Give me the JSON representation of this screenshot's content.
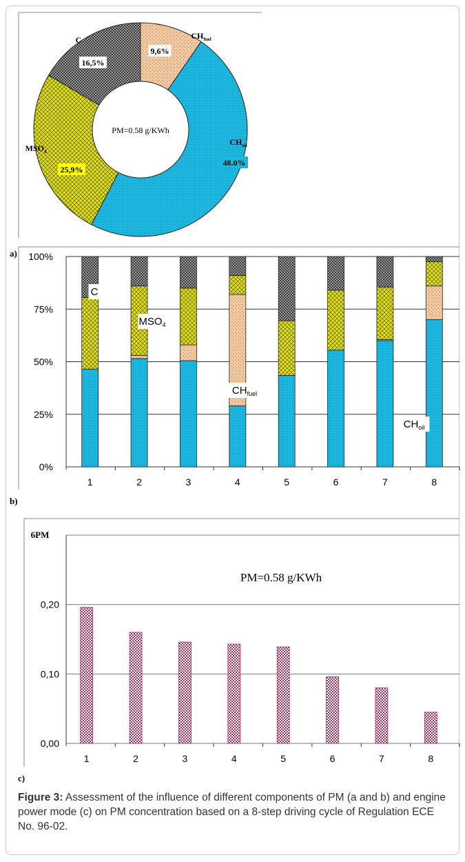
{
  "panels": {
    "a": "a)",
    "b": "b)",
    "c": "c)"
  },
  "caption": {
    "label": "Figure 3:",
    "text": " Assessment of the influence of different components of PM (a and b) and engine power mode (c) on PM concentration based on a 8-step driving cycle of Regulation ECE No. 96-02."
  },
  "colors": {
    "CH_oil": "#1ab6dd",
    "CH_fuel": "#f3c9a2",
    "MSO4": "#e2e21a",
    "C": "#7c7c7c",
    "bar_c": "#a03060"
  },
  "chart_data": [
    {
      "type": "pie",
      "donut": true,
      "center_label": "PM=0.58 g/KWh",
      "slices": [
        {
          "key": "CH_fuel",
          "label": "CH",
          "sub": "fuel",
          "value": 9.6,
          "value_label": "9,6%"
        },
        {
          "key": "CH_oil",
          "label": "CH",
          "sub": "oil",
          "value": 48.0,
          "value_label": "48.0%"
        },
        {
          "key": "MSO4",
          "label": "MSO",
          "sub": "4",
          "value": 25.9,
          "value_label": "25,9%"
        },
        {
          "key": "C",
          "label": "C",
          "sub": "",
          "value": 16.5,
          "value_label": "16,5%"
        }
      ]
    },
    {
      "type": "bar",
      "stacked": true,
      "percent": true,
      "categories": [
        "1",
        "2",
        "3",
        "4",
        "5",
        "6",
        "7",
        "8"
      ],
      "yticks": [
        "0%",
        "25%",
        "50%",
        "75%",
        "100%"
      ],
      "ylim": [
        0,
        100
      ],
      "series": [
        {
          "key": "CH_oil",
          "name": "CH",
          "sub": "oil",
          "values": [
            46.5,
            51.5,
            50.5,
            29,
            43.5,
            55.5,
            60,
            70
          ]
        },
        {
          "key": "CH_fuel",
          "name": "CH",
          "sub": "fuel",
          "values": [
            0,
            1.5,
            7.5,
            53,
            0,
            0,
            0.5,
            16
          ]
        },
        {
          "key": "MSO4",
          "name": "MSO",
          "sub": "4",
          "values": [
            34,
            33,
            27,
            9,
            26,
            28.5,
            25,
            11.5
          ]
        },
        {
          "key": "C",
          "name": "C",
          "sub": "",
          "values": [
            19.5,
            14,
            15,
            9,
            30.5,
            16,
            14.5,
            2.5
          ]
        }
      ]
    },
    {
      "type": "bar",
      "ylabel": "6PM",
      "annotation": "PM=0.58 g/KWh",
      "categories": [
        "1",
        "2",
        "3",
        "4",
        "5",
        "6",
        "7",
        "8"
      ],
      "yticks": [
        "0,00",
        "0,10",
        "0,20"
      ],
      "ylim": [
        0,
        0.3
      ],
      "values": [
        0.196,
        0.16,
        0.146,
        0.143,
        0.139,
        0.096,
        0.08,
        0.045
      ]
    }
  ]
}
